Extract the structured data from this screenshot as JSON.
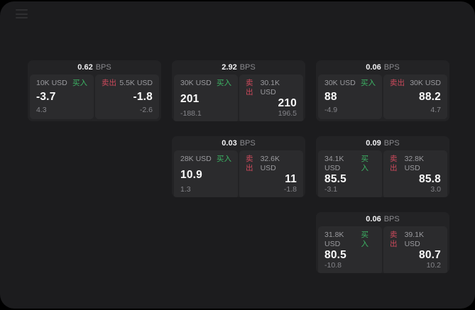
{
  "labels": {
    "bps_suffix": "BPS",
    "buy": "买入",
    "sell": "卖出"
  },
  "colors": {
    "page_background": "#1c1c1e",
    "card_background": "#232325",
    "panel_background": "#2b2b2d",
    "buy_green": "#3cb464",
    "sell_red": "#cd4a5c"
  },
  "cards": [
    {
      "bps": "0.62",
      "col": 1,
      "row": 1,
      "buy": {
        "size": "10K USD",
        "price": "-3.7",
        "delta": "4.3"
      },
      "sell": {
        "size": "5.5K USD",
        "price": "-1.8",
        "delta": "-2.6"
      }
    },
    {
      "bps": "2.92",
      "col": 2,
      "row": 1,
      "buy": {
        "size": "30K USD",
        "price": "201",
        "delta": "-188.1"
      },
      "sell": {
        "size": "30.1K USD",
        "price": "210",
        "delta": "196.5"
      }
    },
    {
      "bps": "0.06",
      "col": 3,
      "row": 1,
      "buy": {
        "size": "30K USD",
        "price": "88",
        "delta": "-4.9"
      },
      "sell": {
        "size": "30K USD",
        "price": "88.2",
        "delta": "4.7"
      }
    },
    {
      "bps": "0.03",
      "col": 2,
      "row": 2,
      "buy": {
        "size": "28K USD",
        "price": "10.9",
        "delta": "1.3"
      },
      "sell": {
        "size": "32.6K USD",
        "price": "11",
        "delta": "-1.8"
      }
    },
    {
      "bps": "0.09",
      "col": 3,
      "row": 2,
      "buy": {
        "size": "34.1K USD",
        "price": "85.5",
        "delta": "-3.1"
      },
      "sell": {
        "size": "32.8K USD",
        "price": "85.8",
        "delta": "3.0"
      }
    },
    {
      "bps": "0.06",
      "col": 3,
      "row": 3,
      "buy": {
        "size": "31.8K USD",
        "price": "80.5",
        "delta": "-10.8"
      },
      "sell": {
        "size": "39.1K USD",
        "price": "80.7",
        "delta": "10.2"
      }
    }
  ]
}
